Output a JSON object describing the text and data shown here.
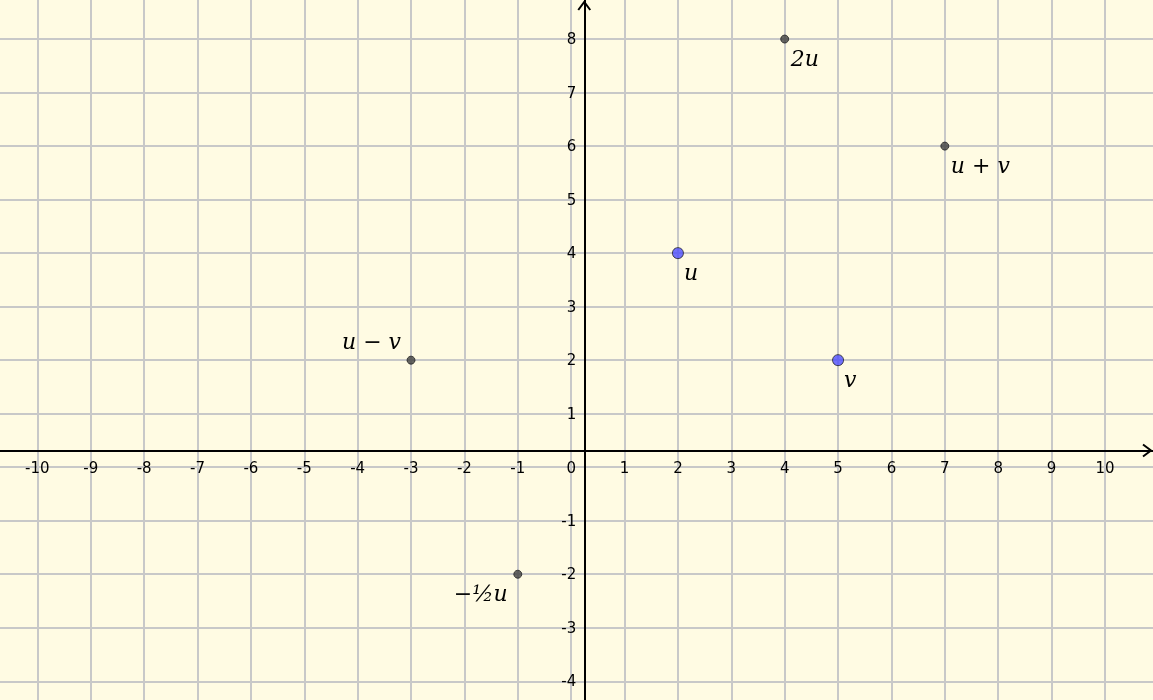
{
  "chart_data": {
    "type": "scatter",
    "series": [
      {
        "color": "#4d4dff",
        "x": [
          2,
          5
        ],
        "values": [
          4,
          2
        ]
      },
      {
        "color": "#404040",
        "x": [
          4,
          7,
          -3,
          -1
        ],
        "values": [
          8,
          6,
          2,
          -2
        ]
      }
    ],
    "xlim": [
      -10.7,
      10.9
    ],
    "ylim": [
      -4.35,
      8.73
    ],
    "xticks": [
      -10,
      -9,
      -8,
      -7,
      -6,
      -5,
      -4,
      -3,
      -2,
      -1,
      0,
      1,
      2,
      3,
      4,
      5,
      6,
      7,
      8,
      9,
      10
    ],
    "yticks": [
      -4,
      -3,
      -2,
      -1,
      {
        "value": 0,
        "label": null
      },
      1,
      2,
      3,
      4,
      5,
      6,
      7,
      8
    ],
    "grid": true,
    "marker": "circle",
    "annotations": [
      {
        "text": "u",
        "x": 2,
        "y": 4
      },
      {
        "text": "v",
        "x": 5,
        "y": 2
      },
      {
        "text": "2u",
        "x": 4,
        "y": 8
      },
      {
        "text": "u + v",
        "x": 7,
        "y": 6
      },
      {
        "text": "u − v",
        "x": -3,
        "y": 2
      },
      {
        "text": "−½u",
        "x": -1,
        "y": -2
      }
    ]
  }
}
